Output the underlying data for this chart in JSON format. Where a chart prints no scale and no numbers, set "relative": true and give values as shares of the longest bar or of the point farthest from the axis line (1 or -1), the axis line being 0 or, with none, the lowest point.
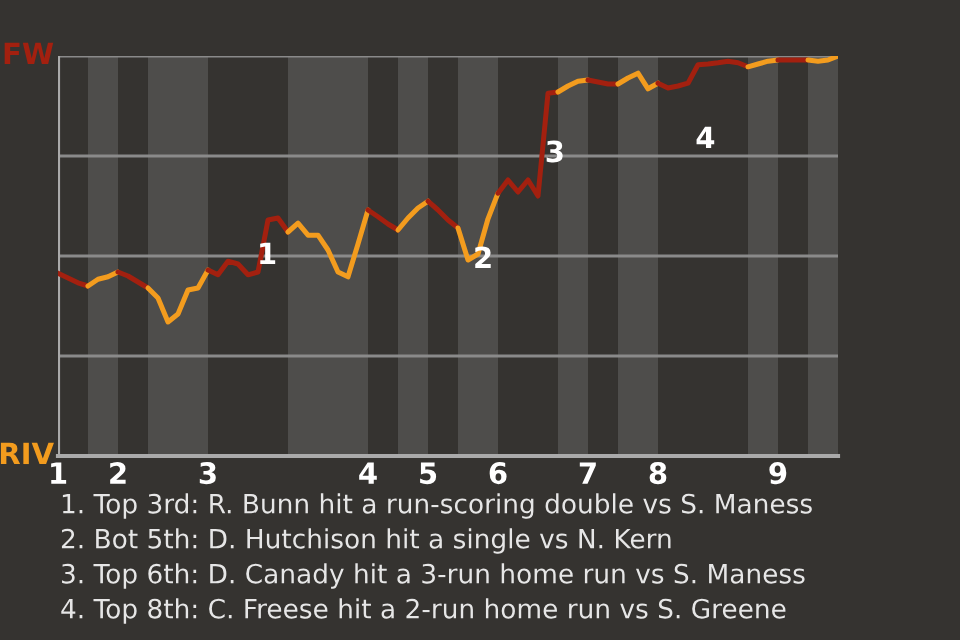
{
  "chart_data": {
    "type": "line",
    "relative": true,
    "categories": [
      "1",
      null,
      null,
      null,
      null,
      null,
      "2",
      null,
      null,
      null,
      null,
      null,
      null,
      null,
      null,
      "3",
      null,
      null,
      null,
      null,
      null,
      null,
      null,
      null,
      null,
      null,
      null,
      null,
      null,
      null,
      null,
      "4",
      null,
      null,
      null,
      null,
      null,
      "5",
      null,
      null,
      null,
      null,
      null,
      null,
      "6",
      null,
      null,
      null,
      null,
      null,
      null,
      null,
      null,
      "7",
      null,
      null,
      null,
      null,
      null,
      null,
      "8",
      null,
      null,
      null,
      null,
      null,
      null,
      null,
      null,
      null,
      null,
      null,
      "9",
      null,
      null,
      null,
      null,
      null,
      null
    ],
    "series": [
      {
        "color": "#a3200f",
        "values": [
          0.457,
          0.445,
          0.433,
          0.425,
          null,
          null,
          null,
          null,
          null,
          null,
          null,
          null,
          null,
          null,
          null,
          null,
          null,
          null,
          null,
          null,
          null,
          null,
          null,
          null,
          null,
          null,
          null,
          null,
          null,
          null,
          null,
          null,
          null,
          null,
          null,
          null,
          null,
          null,
          null,
          null,
          null,
          null,
          null,
          null,
          null,
          null,
          null,
          null,
          null,
          null,
          null,
          null,
          null,
          null,
          null,
          null,
          null,
          null,
          null,
          null,
          null,
          null,
          null,
          null,
          null,
          null,
          null,
          null,
          null,
          null,
          null,
          null,
          null,
          null,
          null,
          null,
          null,
          null,
          null
        ]
      },
      {
        "color": "#f39c1e",
        "values": [
          null,
          null,
          null,
          0.425,
          0.442,
          0.448,
          0.46,
          null,
          null,
          null,
          null,
          null,
          null,
          null,
          null,
          null,
          null,
          null,
          null,
          null,
          null,
          null,
          null,
          null,
          null,
          null,
          null,
          null,
          null,
          null,
          null,
          null,
          null,
          null,
          null,
          null,
          null,
          null,
          null,
          null,
          null,
          null,
          null,
          null,
          null,
          null,
          null,
          null,
          null,
          null,
          null,
          null,
          null,
          null,
          null,
          null,
          null,
          null,
          null,
          null,
          null,
          null,
          null,
          null,
          null,
          null,
          null,
          null,
          null,
          null,
          null,
          null,
          null,
          null,
          null,
          null,
          null,
          null,
          null
        ]
      },
      {
        "color": "#a3200f",
        "values": [
          null,
          null,
          null,
          null,
          null,
          null,
          0.46,
          0.45,
          0.435,
          0.42,
          null,
          null,
          null,
          null,
          null,
          null,
          null,
          null,
          null,
          null,
          null,
          null,
          null,
          null,
          null,
          null,
          null,
          null,
          null,
          null,
          null,
          null,
          null,
          null,
          null,
          null,
          null,
          null,
          null,
          null,
          null,
          null,
          null,
          null,
          null,
          null,
          null,
          null,
          null,
          null,
          null,
          null,
          null,
          null,
          null,
          null,
          null,
          null,
          null,
          null,
          null,
          null,
          null,
          null,
          null,
          null,
          null,
          null,
          null,
          null,
          null,
          null,
          null,
          null,
          null,
          null,
          null,
          null,
          null
        ]
      },
      {
        "color": "#f39c1e",
        "values": [
          null,
          null,
          null,
          null,
          null,
          null,
          null,
          null,
          null,
          0.42,
          0.395,
          0.335,
          0.355,
          0.415,
          0.42,
          0.465,
          null,
          null,
          null,
          null,
          null,
          null,
          null,
          null,
          null,
          null,
          null,
          null,
          null,
          null,
          null,
          null,
          null,
          null,
          null,
          null,
          null,
          null,
          null,
          null,
          null,
          null,
          null,
          null,
          null,
          null,
          null,
          null,
          null,
          null,
          null,
          null,
          null,
          null,
          null,
          null,
          null,
          null,
          null,
          null,
          null,
          null,
          null,
          null,
          null,
          null,
          null,
          null,
          null,
          null,
          null,
          null,
          null,
          null,
          null,
          null,
          null,
          null,
          null
        ]
      },
      {
        "color": "#a3200f",
        "values": [
          null,
          null,
          null,
          null,
          null,
          null,
          null,
          null,
          null,
          null,
          null,
          null,
          null,
          null,
          null,
          0.465,
          0.453,
          0.487,
          0.48,
          0.453,
          0.46,
          0.59,
          0.595,
          0.56,
          null,
          null,
          null,
          null,
          null,
          null,
          null,
          null,
          null,
          null,
          null,
          null,
          null,
          null,
          null,
          null,
          null,
          null,
          null,
          null,
          null,
          null,
          null,
          null,
          null,
          null,
          null,
          null,
          null,
          null,
          null,
          null,
          null,
          null,
          null,
          null,
          null,
          null,
          null,
          null,
          null,
          null,
          null,
          null,
          null,
          null,
          null,
          null,
          null,
          null,
          null,
          null,
          null,
          null,
          null
        ]
      },
      {
        "color": "#f39c1e",
        "values": [
          null,
          null,
          null,
          null,
          null,
          null,
          null,
          null,
          null,
          null,
          null,
          null,
          null,
          null,
          null,
          null,
          null,
          null,
          null,
          null,
          null,
          null,
          null,
          0.56,
          0.582,
          0.552,
          0.552,
          0.515,
          0.46,
          0.448,
          0.53,
          0.615,
          null,
          null,
          null,
          null,
          null,
          null,
          null,
          null,
          null,
          null,
          null,
          null,
          null,
          null,
          null,
          null,
          null,
          null,
          null,
          null,
          null,
          null,
          null,
          null,
          null,
          null,
          null,
          null,
          null,
          null,
          null,
          null,
          null,
          null,
          null,
          null,
          null,
          null,
          null,
          null,
          null,
          null,
          null,
          null,
          null,
          null,
          null
        ]
      },
      {
        "color": "#a3200f",
        "values": [
          null,
          null,
          null,
          null,
          null,
          null,
          null,
          null,
          null,
          null,
          null,
          null,
          null,
          null,
          null,
          null,
          null,
          null,
          null,
          null,
          null,
          null,
          null,
          null,
          null,
          null,
          null,
          null,
          null,
          null,
          null,
          0.615,
          0.598,
          0.58,
          0.565,
          null,
          null,
          null,
          null,
          null,
          null,
          null,
          null,
          null,
          null,
          null,
          null,
          null,
          null,
          null,
          null,
          null,
          null,
          null,
          null,
          null,
          null,
          null,
          null,
          null,
          null,
          null,
          null,
          null,
          null,
          null,
          null,
          null,
          null,
          null,
          null,
          null,
          null,
          null,
          null,
          null,
          null,
          null,
          null
        ]
      },
      {
        "color": "#f39c1e",
        "values": [
          null,
          null,
          null,
          null,
          null,
          null,
          null,
          null,
          null,
          null,
          null,
          null,
          null,
          null,
          null,
          null,
          null,
          null,
          null,
          null,
          null,
          null,
          null,
          null,
          null,
          null,
          null,
          null,
          null,
          null,
          null,
          null,
          null,
          null,
          0.565,
          0.595,
          0.62,
          0.637,
          null,
          null,
          null,
          null,
          null,
          null,
          null,
          null,
          null,
          null,
          null,
          null,
          null,
          null,
          null,
          null,
          null,
          null,
          null,
          null,
          null,
          null,
          null,
          null,
          null,
          null,
          null,
          null,
          null,
          null,
          null,
          null,
          null,
          null,
          null,
          null,
          null,
          null,
          null,
          null,
          null
        ]
      },
      {
        "color": "#a3200f",
        "values": [
          null,
          null,
          null,
          null,
          null,
          null,
          null,
          null,
          null,
          null,
          null,
          null,
          null,
          null,
          null,
          null,
          null,
          null,
          null,
          null,
          null,
          null,
          null,
          null,
          null,
          null,
          null,
          null,
          null,
          null,
          null,
          null,
          null,
          null,
          null,
          null,
          null,
          0.637,
          0.615,
          0.59,
          0.57,
          null,
          null,
          null,
          null,
          null,
          null,
          null,
          null,
          null,
          null,
          null,
          null,
          null,
          null,
          null,
          null,
          null,
          null,
          null,
          null,
          null,
          null,
          null,
          null,
          null,
          null,
          null,
          null,
          null,
          null,
          null,
          null,
          null,
          null,
          null,
          null,
          null,
          null
        ]
      },
      {
        "color": "#f39c1e",
        "values": [
          null,
          null,
          null,
          null,
          null,
          null,
          null,
          null,
          null,
          null,
          null,
          null,
          null,
          null,
          null,
          null,
          null,
          null,
          null,
          null,
          null,
          null,
          null,
          null,
          null,
          null,
          null,
          null,
          null,
          null,
          null,
          null,
          null,
          null,
          null,
          null,
          null,
          null,
          null,
          null,
          0.57,
          0.49,
          0.505,
          0.593,
          0.657,
          null,
          null,
          null,
          null,
          null,
          null,
          null,
          null,
          null,
          null,
          null,
          null,
          null,
          null,
          null,
          null,
          null,
          null,
          null,
          null,
          null,
          null,
          null,
          null,
          null,
          null,
          null,
          null,
          null,
          null,
          null,
          null,
          null,
          null
        ]
      },
      {
        "color": "#a3200f",
        "values": [
          null,
          null,
          null,
          null,
          null,
          null,
          null,
          null,
          null,
          null,
          null,
          null,
          null,
          null,
          null,
          null,
          null,
          null,
          null,
          null,
          null,
          null,
          null,
          null,
          null,
          null,
          null,
          null,
          null,
          null,
          null,
          null,
          null,
          null,
          null,
          null,
          null,
          null,
          null,
          null,
          null,
          null,
          null,
          null,
          0.657,
          0.69,
          0.66,
          0.69,
          0.65,
          0.907,
          0.91,
          null,
          null,
          null,
          null,
          null,
          null,
          null,
          null,
          null,
          null,
          null,
          null,
          null,
          null,
          null,
          null,
          null,
          null,
          null,
          null,
          null,
          null,
          null,
          null,
          null,
          null,
          null,
          null
        ]
      },
      {
        "color": "#f39c1e",
        "values": [
          null,
          null,
          null,
          null,
          null,
          null,
          null,
          null,
          null,
          null,
          null,
          null,
          null,
          null,
          null,
          null,
          null,
          null,
          null,
          null,
          null,
          null,
          null,
          null,
          null,
          null,
          null,
          null,
          null,
          null,
          null,
          null,
          null,
          null,
          null,
          null,
          null,
          null,
          null,
          null,
          null,
          null,
          null,
          null,
          null,
          null,
          null,
          null,
          null,
          null,
          0.91,
          0.925,
          0.937,
          0.94,
          null,
          null,
          null,
          null,
          null,
          null,
          null,
          null,
          null,
          null,
          null,
          null,
          null,
          null,
          null,
          null,
          null,
          null,
          null,
          null,
          null,
          null,
          null,
          null,
          null
        ]
      },
      {
        "color": "#a3200f",
        "values": [
          null,
          null,
          null,
          null,
          null,
          null,
          null,
          null,
          null,
          null,
          null,
          null,
          null,
          null,
          null,
          null,
          null,
          null,
          null,
          null,
          null,
          null,
          null,
          null,
          null,
          null,
          null,
          null,
          null,
          null,
          null,
          null,
          null,
          null,
          null,
          null,
          null,
          null,
          null,
          null,
          null,
          null,
          null,
          null,
          null,
          null,
          null,
          null,
          null,
          null,
          null,
          null,
          null,
          0.94,
          0.935,
          0.93,
          0.93,
          null,
          null,
          null,
          null,
          null,
          null,
          null,
          null,
          null,
          null,
          null,
          null,
          null,
          null,
          null,
          null,
          null,
          null,
          null,
          null,
          null,
          null
        ]
      },
      {
        "color": "#f39c1e",
        "values": [
          null,
          null,
          null,
          null,
          null,
          null,
          null,
          null,
          null,
          null,
          null,
          null,
          null,
          null,
          null,
          null,
          null,
          null,
          null,
          null,
          null,
          null,
          null,
          null,
          null,
          null,
          null,
          null,
          null,
          null,
          null,
          null,
          null,
          null,
          null,
          null,
          null,
          null,
          null,
          null,
          null,
          null,
          null,
          null,
          null,
          null,
          null,
          null,
          null,
          null,
          null,
          null,
          null,
          null,
          null,
          null,
          0.93,
          0.945,
          0.957,
          0.918,
          0.932,
          null,
          null,
          null,
          null,
          null,
          null,
          null,
          null,
          null,
          null,
          null,
          null,
          null,
          null,
          null,
          null,
          null,
          null
        ]
      },
      {
        "color": "#a3200f",
        "values": [
          null,
          null,
          null,
          null,
          null,
          null,
          null,
          null,
          null,
          null,
          null,
          null,
          null,
          null,
          null,
          null,
          null,
          null,
          null,
          null,
          null,
          null,
          null,
          null,
          null,
          null,
          null,
          null,
          null,
          null,
          null,
          null,
          null,
          null,
          null,
          null,
          null,
          null,
          null,
          null,
          null,
          null,
          null,
          null,
          null,
          null,
          null,
          null,
          null,
          null,
          null,
          null,
          null,
          null,
          null,
          null,
          null,
          null,
          null,
          null,
          0.932,
          0.92,
          0.925,
          0.932,
          0.978,
          0.98,
          0.983,
          0.987,
          0.983,
          0.973,
          null,
          null,
          null,
          null,
          null,
          null,
          null,
          null,
          null
        ]
      },
      {
        "color": "#f39c1e",
        "values": [
          null,
          null,
          null,
          null,
          null,
          null,
          null,
          null,
          null,
          null,
          null,
          null,
          null,
          null,
          null,
          null,
          null,
          null,
          null,
          null,
          null,
          null,
          null,
          null,
          null,
          null,
          null,
          null,
          null,
          null,
          null,
          null,
          null,
          null,
          null,
          null,
          null,
          null,
          null,
          null,
          null,
          null,
          null,
          null,
          null,
          null,
          null,
          null,
          null,
          null,
          null,
          null,
          null,
          null,
          null,
          null,
          null,
          null,
          null,
          null,
          null,
          null,
          null,
          null,
          null,
          null,
          null,
          null,
          null,
          0.973,
          0.98,
          0.987,
          0.99,
          null,
          null,
          null,
          null,
          null,
          null
        ]
      },
      {
        "color": "#a3200f",
        "values": [
          null,
          null,
          null,
          null,
          null,
          null,
          null,
          null,
          null,
          null,
          null,
          null,
          null,
          null,
          null,
          null,
          null,
          null,
          null,
          null,
          null,
          null,
          null,
          null,
          null,
          null,
          null,
          null,
          null,
          null,
          null,
          null,
          null,
          null,
          null,
          null,
          null,
          null,
          null,
          null,
          null,
          null,
          null,
          null,
          null,
          null,
          null,
          null,
          null,
          null,
          null,
          null,
          null,
          null,
          null,
          null,
          null,
          null,
          null,
          null,
          null,
          null,
          null,
          null,
          null,
          null,
          null,
          null,
          null,
          null,
          null,
          null,
          0.99,
          0.99,
          0.99,
          0.99,
          null,
          null,
          null
        ]
      },
      {
        "color": "#f39c1e",
        "values": [
          null,
          null,
          null,
          null,
          null,
          null,
          null,
          null,
          null,
          null,
          null,
          null,
          null,
          null,
          null,
          null,
          null,
          null,
          null,
          null,
          null,
          null,
          null,
          null,
          null,
          null,
          null,
          null,
          null,
          null,
          null,
          null,
          null,
          null,
          null,
          null,
          null,
          null,
          null,
          null,
          null,
          null,
          null,
          null,
          null,
          null,
          null,
          null,
          null,
          null,
          null,
          null,
          null,
          null,
          null,
          null,
          null,
          null,
          null,
          null,
          null,
          null,
          null,
          null,
          null,
          null,
          null,
          null,
          null,
          null,
          null,
          null,
          null,
          null,
          null,
          0.99,
          0.987,
          0.99,
          1
        ]
      }
    ],
    "grid": "y",
    "annotations": [
      "FW",
      "RIV",
      "1",
      "2",
      "3",
      "4",
      "1. Top 3rd: R. Bunn hit a run-scoring double vs S. Maness",
      "2. Bot 5th: D. Hutchison hit a single vs N. Kern",
      "3. Top 6th: D. Canady hit a 3-run home run vs S. Maness",
      "4. Top 8th: C. Freese hit a 2-run home run vs S. Greene"
    ]
  }
}
